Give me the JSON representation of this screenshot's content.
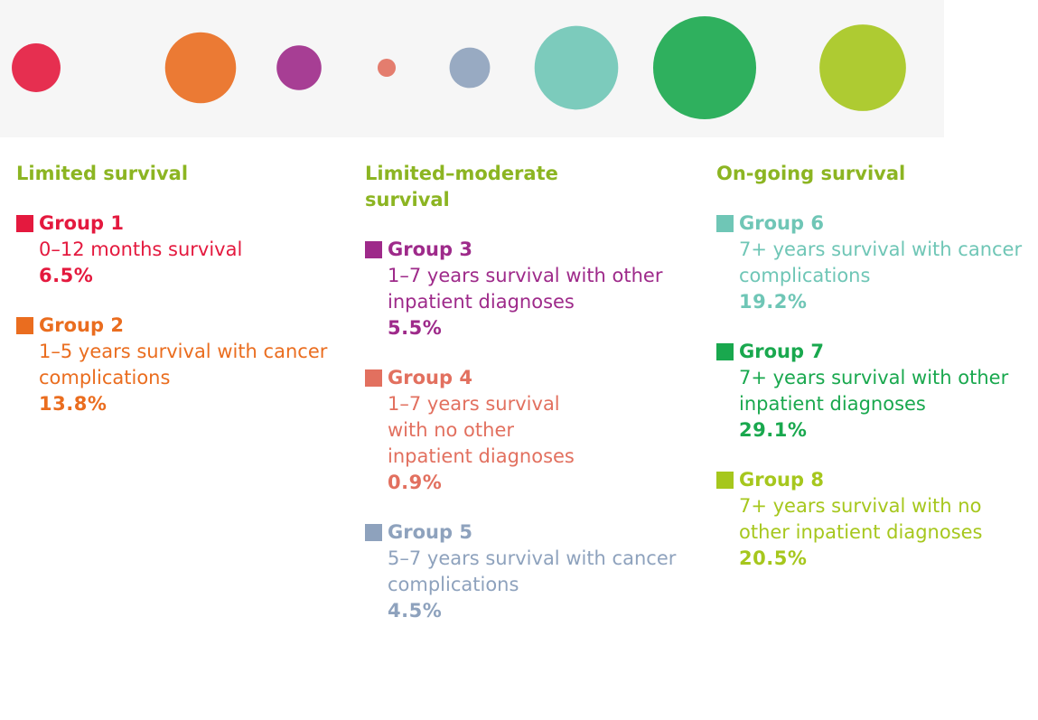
{
  "chart_data": {
    "type": "bubble",
    "columns": [
      {
        "title": "Limited survival",
        "groups": [
          {
            "name": "Group 1",
            "description": "0–12 months survival",
            "color": "#e4193e",
            "value": 6.5,
            "value_label": "6.5%"
          },
          {
            "name": "Group 2",
            "description": "1–5 years survival with cancer complications",
            "color": "#ea6d1f",
            "value": 13.8,
            "value_label": "13.8%"
          }
        ]
      },
      {
        "title": "Limited–moderate survival",
        "groups": [
          {
            "name": "Group 3",
            "description": "1–7 years survival with other inpatient diagnoses",
            "color": "#9e2a8a",
            "value": 5.5,
            "value_label": "5.5%"
          },
          {
            "name": "Group 4",
            "description": "1–7 years survival with no other inpatient diagnoses",
            "color": "#e2705f",
            "value": 0.9,
            "value_label": "0.9%"
          },
          {
            "name": "Group 5",
            "description": "5–7 years survival with cancer complications",
            "color": "#8ea2bd",
            "value": 4.5,
            "value_label": "4.5%"
          }
        ]
      },
      {
        "title": "On-going survival",
        "groups": [
          {
            "name": "Group 6",
            "description": "7+ years survival with cancer complications",
            "color": "#6fc6b6",
            "value": 19.2,
            "value_label": "19.2%"
          },
          {
            "name": "Group 7",
            "description": "7+ years survival with other inpatient diagnoses",
            "color": "#19a84e",
            "value": 29.1,
            "value_label": "29.1%"
          },
          {
            "name": "Group 8",
            "description": "7+ years survival with no other inpatient diagnoses",
            "color": "#a6c71d",
            "value": 20.5,
            "value_label": "20.5%"
          }
        ]
      }
    ]
  }
}
